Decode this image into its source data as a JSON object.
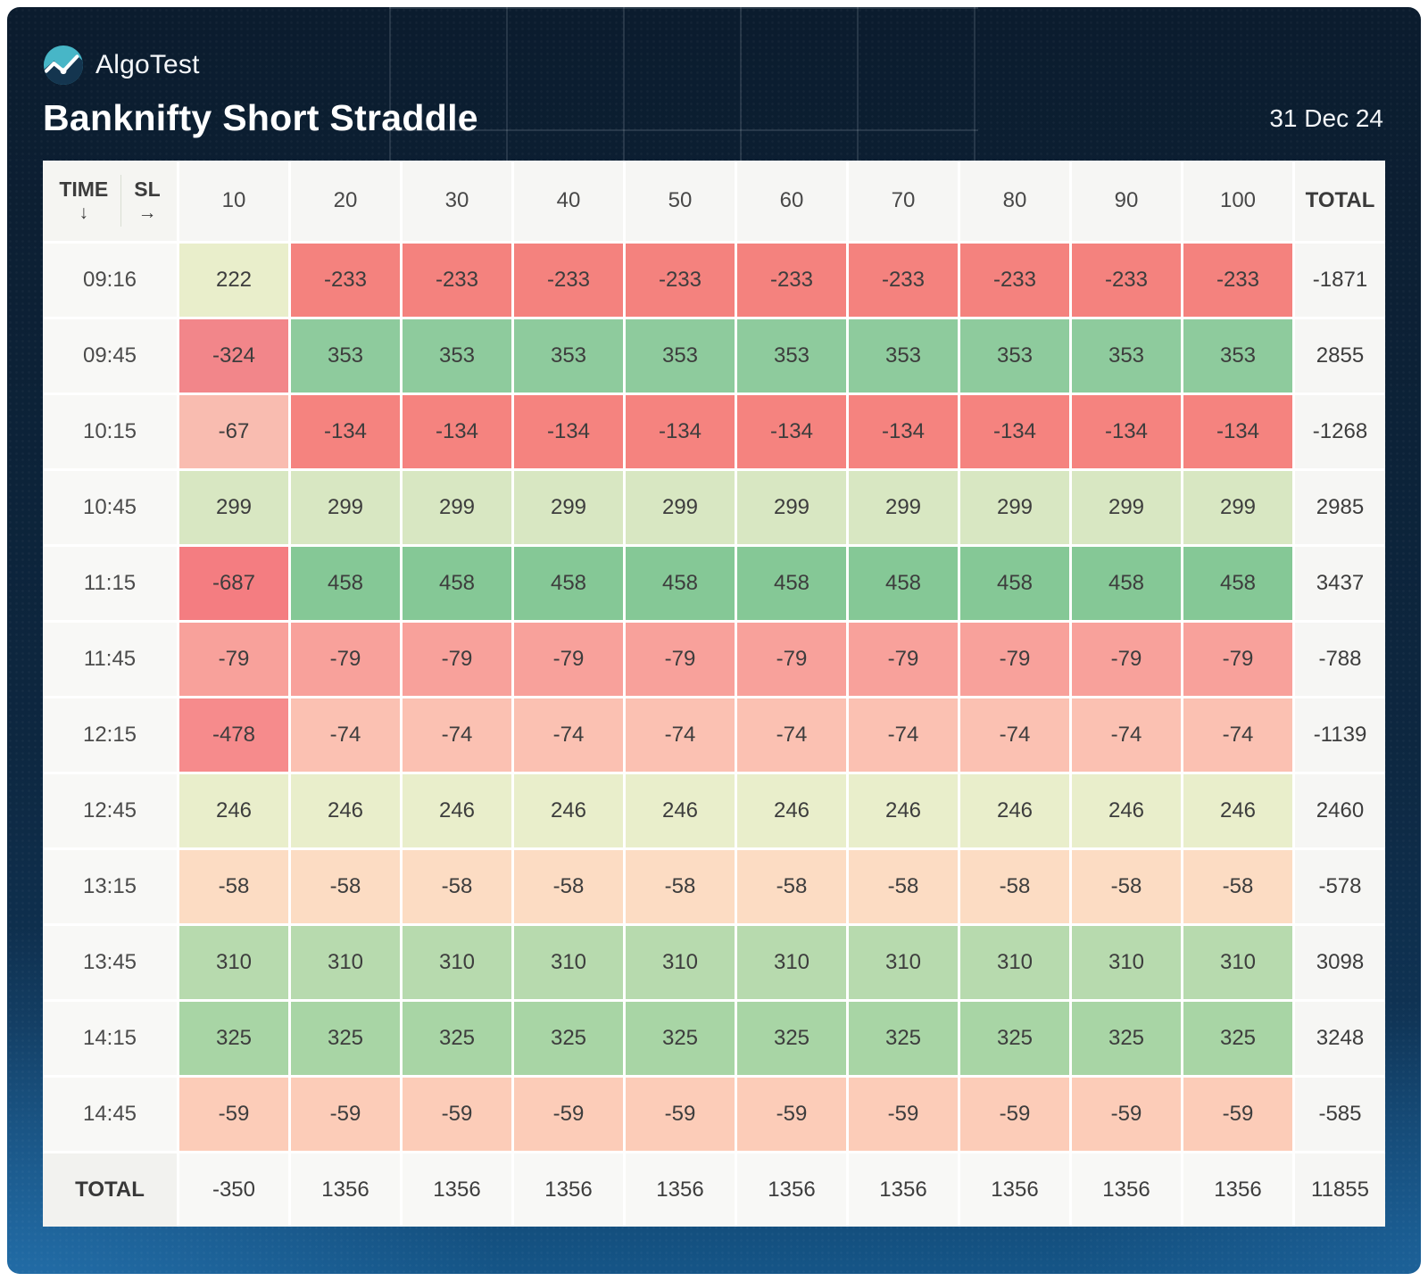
{
  "brand": {
    "name": "AlgoTest"
  },
  "header": {
    "title": "Banknifty Short Straddle",
    "date": "31 Dec 24"
  },
  "table": {
    "corner": {
      "row_label": "TIME",
      "row_arrow": "↓",
      "col_label": "SL",
      "col_arrow": "→"
    },
    "sl_columns": [
      "10",
      "20",
      "30",
      "40",
      "50",
      "60",
      "70",
      "80",
      "90",
      "100"
    ],
    "total_label": "TOTAL",
    "rows": [
      {
        "time": "09:16",
        "values": [
          222,
          -233,
          -233,
          -233,
          -233,
          -233,
          -233,
          -233,
          -233,
          -233
        ],
        "colors": [
          "#e9eecb",
          "#f4827e",
          "#f4827e",
          "#f4827e",
          "#f4827e",
          "#f4827e",
          "#f4827e",
          "#f4827e",
          "#f4827e",
          "#f4827e"
        ],
        "total": -1871
      },
      {
        "time": "09:45",
        "values": [
          -324,
          353,
          353,
          353,
          353,
          353,
          353,
          353,
          353,
          353
        ],
        "colors": [
          "#f2868a",
          "#8ecb9d",
          "#8ecb9d",
          "#8ecb9d",
          "#8ecb9d",
          "#8ecb9d",
          "#8ecb9d",
          "#8ecb9d",
          "#8ecb9d",
          "#8ecb9d"
        ],
        "total": 2855
      },
      {
        "time": "10:15",
        "values": [
          -67,
          -134,
          -134,
          -134,
          -134,
          -134,
          -134,
          -134,
          -134,
          -134
        ],
        "colors": [
          "#f9bcb0",
          "#f5837f",
          "#f5837f",
          "#f5837f",
          "#f5837f",
          "#f5837f",
          "#f5837f",
          "#f5837f",
          "#f5837f",
          "#f5837f"
        ],
        "total": -1268
      },
      {
        "time": "10:45",
        "values": [
          299,
          299,
          299,
          299,
          299,
          299,
          299,
          299,
          299,
          299
        ],
        "colors": [
          "#d8e7c2",
          "#d8e7c2",
          "#d8e7c2",
          "#d8e7c2",
          "#d8e7c2",
          "#d8e7c2",
          "#d8e7c2",
          "#d8e7c2",
          "#d8e7c2",
          "#d8e7c2"
        ],
        "total": 2985
      },
      {
        "time": "11:15",
        "values": [
          -687,
          458,
          458,
          458,
          458,
          458,
          458,
          458,
          458,
          458
        ],
        "colors": [
          "#f47d81",
          "#85c896",
          "#85c896",
          "#85c896",
          "#85c896",
          "#85c896",
          "#85c896",
          "#85c896",
          "#85c896",
          "#85c896"
        ],
        "total": 3437
      },
      {
        "time": "11:45",
        "values": [
          -79,
          -79,
          -79,
          -79,
          -79,
          -79,
          -79,
          -79,
          -79,
          -79
        ],
        "colors": [
          "#f8a19b",
          "#f8a19b",
          "#f8a19b",
          "#f8a19b",
          "#f8a19b",
          "#f8a19b",
          "#f8a19b",
          "#f8a19b",
          "#f8a19b",
          "#f8a19b"
        ],
        "total": -788
      },
      {
        "time": "12:15",
        "values": [
          -478,
          -74,
          -74,
          -74,
          -74,
          -74,
          -74,
          -74,
          -74,
          -74
        ],
        "colors": [
          "#f68b8c",
          "#fbc1b2",
          "#fbc1b2",
          "#fbc1b2",
          "#fbc1b2",
          "#fbc1b2",
          "#fbc1b2",
          "#fbc1b2",
          "#fbc1b2",
          "#fbc1b2"
        ],
        "total": -1139
      },
      {
        "time": "12:45",
        "values": [
          246,
          246,
          246,
          246,
          246,
          246,
          246,
          246,
          246,
          246
        ],
        "colors": [
          "#e9eecb",
          "#e9eecb",
          "#e9eecb",
          "#e9eecb",
          "#e9eecb",
          "#e9eecb",
          "#e9eecb",
          "#e9eecb",
          "#e9eecb",
          "#e9eecb"
        ],
        "total": 2460
      },
      {
        "time": "13:15",
        "values": [
          -58,
          -58,
          -58,
          -58,
          -58,
          -58,
          -58,
          -58,
          -58,
          -58
        ],
        "colors": [
          "#fcdcc3",
          "#fcdcc3",
          "#fcdcc3",
          "#fcdcc3",
          "#fcdcc3",
          "#fcdcc3",
          "#fcdcc3",
          "#fcdcc3",
          "#fcdcc3",
          "#fcdcc3"
        ],
        "total": -578
      },
      {
        "time": "13:45",
        "values": [
          310,
          310,
          310,
          310,
          310,
          310,
          310,
          310,
          310,
          310
        ],
        "colors": [
          "#b7daae",
          "#b7daae",
          "#b7daae",
          "#b7daae",
          "#b7daae",
          "#b7daae",
          "#b7daae",
          "#b7daae",
          "#b7daae",
          "#b7daae"
        ],
        "total": 3098
      },
      {
        "time": "14:15",
        "values": [
          325,
          325,
          325,
          325,
          325,
          325,
          325,
          325,
          325,
          325
        ],
        "colors": [
          "#a8d5a5",
          "#a8d5a5",
          "#a8d5a5",
          "#a8d5a5",
          "#a8d5a5",
          "#a8d5a5",
          "#a8d5a5",
          "#a8d5a5",
          "#a8d5a5",
          "#a8d5a5"
        ],
        "total": 3248
      },
      {
        "time": "14:45",
        "values": [
          -59,
          -59,
          -59,
          -59,
          -59,
          -59,
          -59,
          -59,
          -59,
          -59
        ],
        "colors": [
          "#fcccb8",
          "#fcccb8",
          "#fcccb8",
          "#fcccb8",
          "#fcccb8",
          "#fcccb8",
          "#fcccb8",
          "#fcccb8",
          "#fcccb8",
          "#fcccb8"
        ],
        "total": -585
      }
    ],
    "total_row": {
      "label": "TOTAL",
      "values": [
        -350,
        1356,
        1356,
        1356,
        1356,
        1356,
        1356,
        1356,
        1356,
        1356
      ],
      "total": 11855
    }
  },
  "chart_data": {
    "type": "heatmap",
    "title": "Banknifty Short Straddle",
    "subtitle": "31 Dec 24",
    "xlabel": "SL",
    "ylabel": "TIME",
    "x": [
      10,
      20,
      30,
      40,
      50,
      60,
      70,
      80,
      90,
      100
    ],
    "y": [
      "09:16",
      "09:45",
      "10:15",
      "10:45",
      "11:15",
      "11:45",
      "12:15",
      "12:45",
      "13:15",
      "13:45",
      "14:15",
      "14:45"
    ],
    "values": [
      [
        222,
        -233,
        -233,
        -233,
        -233,
        -233,
        -233,
        -233,
        -233,
        -233
      ],
      [
        -324,
        353,
        353,
        353,
        353,
        353,
        353,
        353,
        353,
        353
      ],
      [
        -67,
        -134,
        -134,
        -134,
        -134,
        -134,
        -134,
        -134,
        -134,
        -134
      ],
      [
        299,
        299,
        299,
        299,
        299,
        299,
        299,
        299,
        299,
        299
      ],
      [
        -687,
        458,
        458,
        458,
        458,
        458,
        458,
        458,
        458,
        458
      ],
      [
        -79,
        -79,
        -79,
        -79,
        -79,
        -79,
        -79,
        -79,
        -79,
        -79
      ],
      [
        -478,
        -74,
        -74,
        -74,
        -74,
        -74,
        -74,
        -74,
        -74,
        -74
      ],
      [
        246,
        246,
        246,
        246,
        246,
        246,
        246,
        246,
        246,
        246
      ],
      [
        -58,
        -58,
        -58,
        -58,
        -58,
        -58,
        -58,
        -58,
        -58,
        -58
      ],
      [
        310,
        310,
        310,
        310,
        310,
        310,
        310,
        310,
        310,
        310
      ],
      [
        325,
        325,
        325,
        325,
        325,
        325,
        325,
        325,
        325,
        325
      ],
      [
        -59,
        -59,
        -59,
        -59,
        -59,
        -59,
        -59,
        -59,
        -59,
        -59
      ]
    ],
    "row_totals": [
      -1871,
      2855,
      -1268,
      2985,
      3437,
      -788,
      -1139,
      2460,
      -578,
      3098,
      3248,
      -585
    ],
    "col_totals": [
      -350,
      1356,
      1356,
      1356,
      1356,
      1356,
      1356,
      1356,
      1356,
      1356
    ],
    "grand_total": 11855,
    "colormap": {
      "negative_strong": "#f47d81",
      "negative_weak": "#fcdcc3",
      "positive_weak": "#e9eecb",
      "positive_strong": "#85c896"
    },
    "legend": "none",
    "grid": "off"
  }
}
